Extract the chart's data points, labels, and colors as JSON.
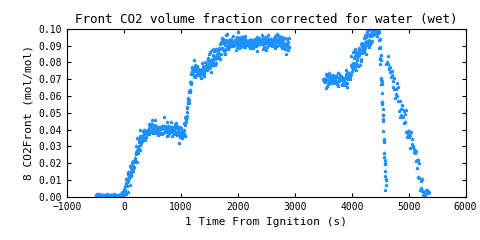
{
  "title": "Front CO2 volume fraction corrected for water (wet)",
  "xlabel": "1 Time From Ignition (s)",
  "ylabel": "8 CO2Front (mol/mol)",
  "xlim": [
    -1000,
    6000
  ],
  "ylim": [
    0,
    0.1
  ],
  "xticks": [
    -1000,
    0,
    1000,
    2000,
    3000,
    4000,
    5000,
    6000
  ],
  "yticks": [
    0,
    0.01,
    0.02,
    0.03,
    0.04,
    0.05,
    0.06,
    0.07,
    0.08,
    0.09,
    0.1
  ],
  "color": "#1e90ff",
  "marker": "*",
  "markersize": 2.5,
  "linestyle": "none",
  "bg_color": "#ffffff",
  "title_fontsize": 9,
  "label_fontsize": 8,
  "tick_fontsize": 7
}
